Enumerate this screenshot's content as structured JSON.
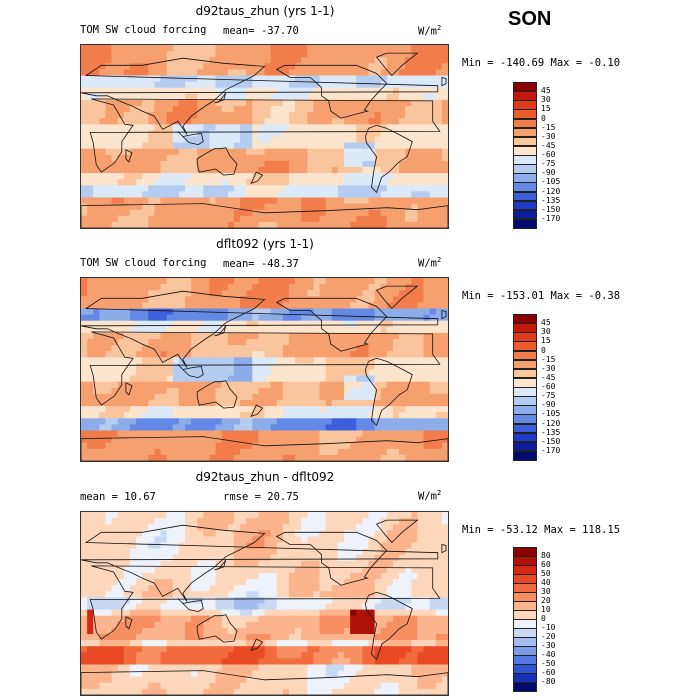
{
  "season": "SON",
  "chart_data": [
    {
      "type": "heatmap",
      "title": "d92taus_zhun (yrs 1-1)",
      "variable": "TOM SW cloud forcing",
      "stat_label": "mean=",
      "stat_value": "-37.70",
      "units": "W/m",
      "units_exp": "2",
      "minmax": "Min = -140.69 Max =  -0.10",
      "min": -140.69,
      "max": -0.1,
      "levels": [
        "45",
        "30",
        "15",
        "0",
        "-15",
        "-30",
        "-45",
        "-60",
        "-75",
        "-90",
        "-105",
        "-120",
        "-135",
        "-150",
        "-170"
      ],
      "colors": [
        "#8b0000",
        "#c0190f",
        "#dd3b1c",
        "#ec5d2e",
        "#f27d4c",
        "#f6a070",
        "#fac49c",
        "#fde4cc",
        "#dce9f8",
        "#b3ccef",
        "#8dadea",
        "#6488e6",
        "#3c5fdc",
        "#1f3bc8",
        "#0a1e9e",
        "#040b6e"
      ]
    },
    {
      "type": "heatmap",
      "title": "dflt092 (yrs 1-1)",
      "variable": "TOM SW cloud forcing",
      "stat_label": "mean=",
      "stat_value": "-48.37",
      "units": "W/m",
      "units_exp": "2",
      "minmax": "Min = -153.01 Max =  -0.38",
      "min": -153.01,
      "max": -0.38,
      "levels": [
        "45",
        "30",
        "15",
        "0",
        "-15",
        "-30",
        "-45",
        "-60",
        "-75",
        "-90",
        "-105",
        "-120",
        "-135",
        "-150",
        "-170"
      ],
      "colors": [
        "#8b0000",
        "#c0190f",
        "#dd3b1c",
        "#ec5d2e",
        "#f27d4c",
        "#f6a070",
        "#fac49c",
        "#fde4cc",
        "#dce9f8",
        "#b3ccef",
        "#8dadea",
        "#6488e6",
        "#3c5fdc",
        "#1f3bc8",
        "#0a1e9e",
        "#040b6e"
      ]
    },
    {
      "type": "heatmap",
      "title": "d92taus_zhun - dflt092",
      "mean_label": "mean =",
      "mean_value": "10.67",
      "rmse_label": "rmse =",
      "rmse_value": "20.75",
      "units": "W/m",
      "units_exp": "2",
      "minmax": "Min = -53.12 Max = 118.15",
      "min": -53.12,
      "max": 118.15,
      "levels": [
        "80",
        "60",
        "50",
        "40",
        "30",
        "20",
        "10",
        "0",
        "-10",
        "-20",
        "-30",
        "-40",
        "-50",
        "-60",
        "-80"
      ],
      "colors": [
        "#8b0000",
        "#b11208",
        "#d42a15",
        "#e84a25",
        "#f26a3f",
        "#f78f63",
        "#fbb48c",
        "#fdd7bb",
        "#eef3fb",
        "#c8daf3",
        "#a3bdee",
        "#7c9cea",
        "#5279e3",
        "#2f55d3",
        "#1430b4",
        "#040b6e"
      ]
    }
  ]
}
